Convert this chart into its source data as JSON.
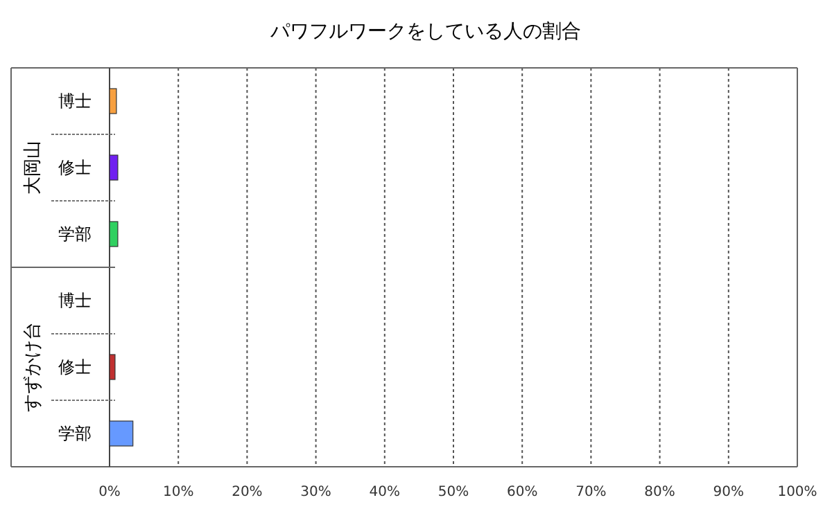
{
  "chart_data": {
    "type": "bar",
    "orientation": "horizontal",
    "title": "パワフルワークをしている人の割合",
    "categories": [
      "博士",
      "修士",
      "学部",
      "博士",
      "修士",
      "学部"
    ],
    "values": [
      1.0,
      1.2,
      1.2,
      0,
      0.8,
      3.4
    ],
    "colors": [
      "#f7a040",
      "#7020f0",
      "#30d060",
      "#6699ff",
      "#c03030",
      "#6699ff"
    ],
    "annotations": [
      "大岡山",
      "すずかけ台"
    ],
    "xlim": [
      0,
      100
    ],
    "xticks": [
      {
        "value": 0,
        "label": "0%"
      },
      {
        "value": 10,
        "label": "10%"
      },
      {
        "value": 20,
        "label": "20%"
      },
      {
        "value": 30,
        "label": "30%"
      },
      {
        "value": 40,
        "label": "40%"
      },
      {
        "value": 50,
        "label": "50%"
      },
      {
        "value": 60,
        "label": "60%"
      },
      {
        "value": 70,
        "label": "70%"
      },
      {
        "value": 80,
        "label": "80%"
      },
      {
        "value": 90,
        "label": "90%"
      },
      {
        "value": 100,
        "label": "100%"
      }
    ],
    "grid": "x"
  }
}
